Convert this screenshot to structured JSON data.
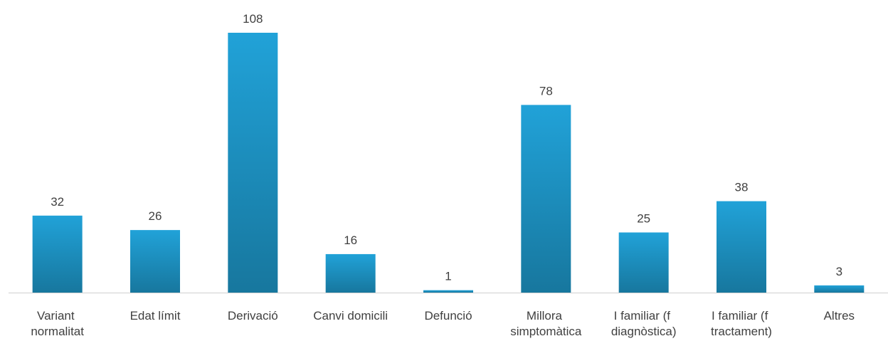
{
  "chart_data": {
    "type": "bar",
    "categories": [
      "Variant normalitat",
      "Edat límit",
      "Derivació",
      "Canvi domicili",
      "Defunció",
      "Millora simptomàtica",
      "I familiar (f diagnòstica)",
      "I familiar (f tractament)",
      "Altres"
    ],
    "values": [
      32,
      26,
      108,
      16,
      1,
      78,
      25,
      38,
      3
    ],
    "color": "#1f9ed2"
  }
}
